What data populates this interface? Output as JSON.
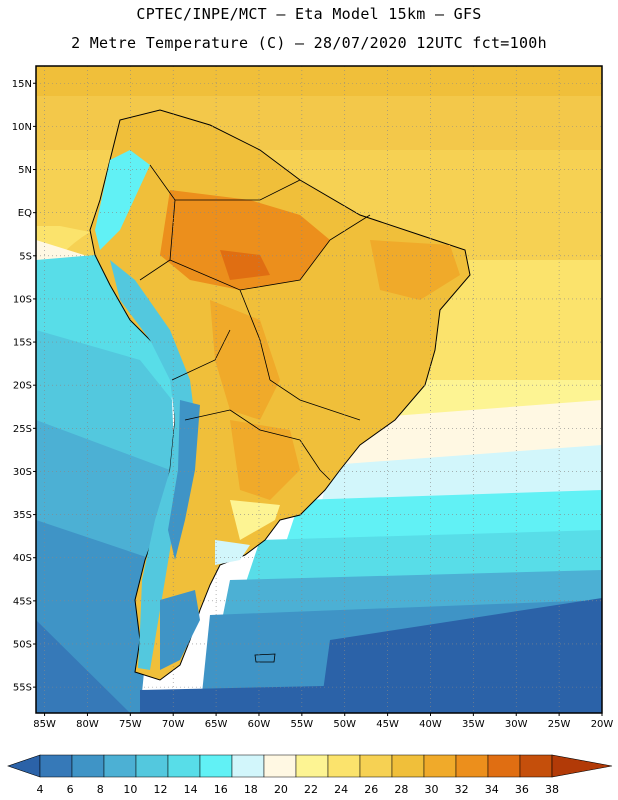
{
  "title_line1": "CPTEC/INPE/MCT –  Eta Model 15km – GFS",
  "title_line2": "2 Metre Temperature (C) – 28/07/2020 12UTC fct=100h",
  "lat_labels": [
    "15N",
    "10N",
    "5N",
    "EQ",
    "5S",
    "10S",
    "15S",
    "20S",
    "25S",
    "30S",
    "35S",
    "40S",
    "45S",
    "50S",
    "55S"
  ],
  "lat_values": [
    15,
    10,
    5,
    0,
    -5,
    -10,
    -15,
    -20,
    -25,
    -30,
    -35,
    -40,
    -45,
    -50,
    -55
  ],
  "lon_labels": [
    "85W",
    "80W",
    "75W",
    "70W",
    "65W",
    "60W",
    "55W",
    "50W",
    "45W",
    "40W",
    "35W",
    "30W",
    "25W",
    "20W"
  ],
  "lon_values": [
    -85,
    -80,
    -75,
    -70,
    -65,
    -60,
    -55,
    -50,
    -45,
    -40,
    -35,
    -30,
    -25,
    -20
  ],
  "colorbar": {
    "values": [
      "4",
      "6",
      "8",
      "10",
      "12",
      "14",
      "16",
      "18",
      "20",
      "22",
      "24",
      "26",
      "28",
      "30",
      "32",
      "34",
      "36",
      "38"
    ],
    "colors": [
      "#2b62a8",
      "#3679b8",
      "#3f94c6",
      "#4cb0d4",
      "#53c8de",
      "#58dde8",
      "#61f1f5",
      "#d2f6fb",
      "#fff8e3",
      "#fdf493",
      "#fbe36c",
      "#f6d153",
      "#f0bf3a",
      "#f0aa2a",
      "#ec8f1c",
      "#e06e12",
      "#c54f0b",
      "#b23a07"
    ]
  }
}
